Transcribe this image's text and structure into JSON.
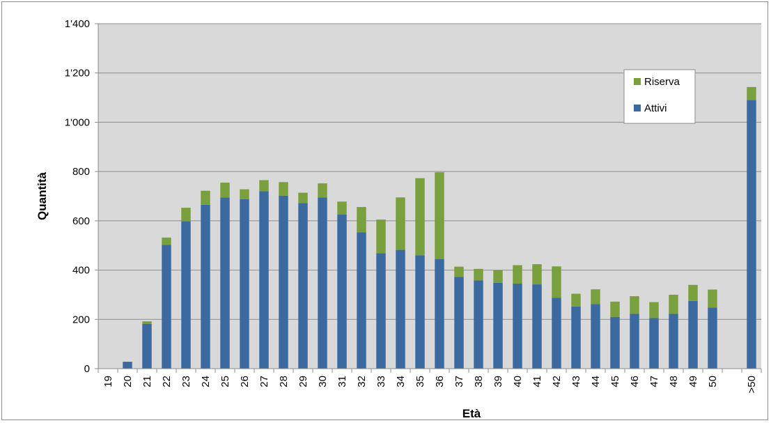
{
  "chart_data": {
    "type": "bar",
    "stacked": true,
    "categories": [
      "19",
      "20",
      "21",
      "22",
      "23",
      "24",
      "25",
      "26",
      "27",
      "28",
      "29",
      "30",
      "31",
      "32",
      "33",
      "34",
      "35",
      "36",
      "37",
      "38",
      "39",
      "40",
      "41",
      "42",
      "43",
      "44",
      "45",
      "46",
      "47",
      "48",
      "49",
      "50",
      "",
      ">50"
    ],
    "series": [
      {
        "name": "Attivi",
        "color": "#3b6aa0",
        "values": [
          0,
          28,
          182,
          502,
          598,
          665,
          695,
          688,
          720,
          702,
          672,
          695,
          625,
          553,
          468,
          482,
          460,
          445,
          372,
          358,
          348,
          345,
          342,
          288,
          252,
          262,
          210,
          222,
          205,
          222,
          275,
          248,
          0,
          1090
        ]
      },
      {
        "name": "Riserva",
        "color": "#79a03c",
        "values": [
          0,
          0,
          10,
          30,
          55,
          57,
          60,
          40,
          45,
          55,
          42,
          57,
          53,
          103,
          137,
          213,
          313,
          352,
          42,
          47,
          52,
          75,
          82,
          127,
          52,
          60,
          62,
          72,
          65,
          78,
          65,
          73,
          0,
          53
        ]
      }
    ],
    "xlabel": "Età",
    "ylabel": "Quantità",
    "ylim": [
      0,
      1400
    ],
    "yticks": [
      0,
      200,
      400,
      600,
      800,
      1000,
      1200,
      1400
    ],
    "ytick_labels": [
      "0",
      "200",
      "400",
      "600",
      "800",
      "1'000",
      "1'200",
      "1'400"
    ],
    "grid": true,
    "legend": {
      "position": "top-right",
      "items": [
        "Riserva",
        "Attivi"
      ]
    }
  }
}
